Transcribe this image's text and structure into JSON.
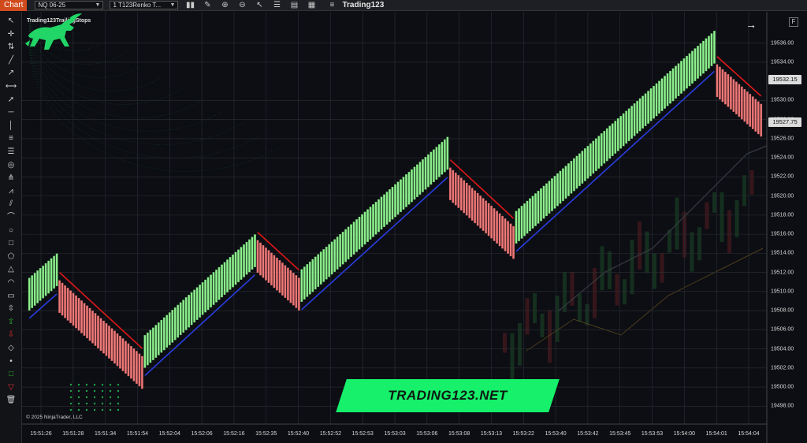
{
  "toolbar": {
    "chart_tab": "Chart",
    "instrument": "NQ 06-25",
    "bar_type": "1 T123Renko T...",
    "title": "Trading123",
    "icons": [
      "bar-chart-icon",
      "pencil-icon",
      "zoom-in-icon",
      "zoom-out-icon",
      "cursor-icon",
      "list-icon",
      "template-icon",
      "properties-icon",
      "menu-icon"
    ]
  },
  "left_tools": [
    "cursor-icon",
    "crosshair-icon",
    "stay-in-drawtool-icon",
    "line-icon",
    "ray-icon",
    "extended-line-icon",
    "arrow-line-icon",
    "horizontal-line-icon",
    "vertical-line-icon",
    "fib-retracement-icon",
    "fib-extension-icon",
    "fib-circle-icon",
    "andrews-pitchfork-icon",
    "gann-fan-icon",
    "regression-channel-icon",
    "time-cycles-icon",
    "ellipse-icon",
    "rectangle-icon",
    "polygon-icon",
    "triangle-icon",
    "arc-icon",
    "ruler-icon",
    "risk-reward-icon",
    "arrow-up-icon",
    "arrow-down-icon",
    "diamond-icon",
    "dot-icon",
    "square-icon",
    "triangle-down-icon",
    "trash-icon"
  ],
  "chart": {
    "indicator_label": "Trading123TrailingStops",
    "copyright": "© 2025 NinjaTrader, LLC",
    "panel_button": "F",
    "y_ticks": [
      "19536.00",
      "19534.00",
      "19530.00",
      "19528.00",
      "19526.00",
      "19524.00",
      "19522.00",
      "19520.00",
      "19518.00",
      "19516.00",
      "19514.00",
      "19512.00",
      "19510.00",
      "19508.00",
      "19506.00",
      "19504.00",
      "19502.00",
      "19500.00",
      "19498.00"
    ],
    "price_tags": [
      "19532.15",
      "19527.75"
    ],
    "x_ticks": [
      "15:51:26",
      "15:51:28",
      "15:51:34",
      "15:51:54",
      "15:52:04",
      "15:52:06",
      "15:52:16",
      "15:52:35",
      "15:52:40",
      "15:52:52",
      "15:52:53",
      "15:53:03",
      "15:53:06",
      "15:53:08",
      "15:53:13",
      "15:53:22",
      "15:53:40",
      "15:53:42",
      "15:53:45",
      "15:53:53",
      "15:54:00",
      "15:54:01",
      "15:54:04"
    ],
    "colors": {
      "up": "#8ef08e",
      "down": "#ee7a7a",
      "stop_long": "#2a3de0",
      "stop_short": "#e01818",
      "grid": "#2c2f36"
    },
    "chart_data": {
      "type": "candlestick",
      "legs": [
        {
          "dir": "up",
          "from": 19509.6,
          "to": 19512.4
        },
        {
          "dir": "down",
          "from": 19509.6,
          "to": 19501.4
        },
        {
          "dir": "up",
          "from": 19503.6,
          "to": 19514.4
        },
        {
          "dir": "down",
          "from": 19513.8,
          "to": 19509.6
        },
        {
          "dir": "up",
          "from": 19510.5,
          "to": 19524.6
        },
        {
          "dir": "down",
          "from": 19521.4,
          "to": 19515.0
        },
        {
          "dir": "up",
          "from": 19516.6,
          "to": 19535.7
        },
        {
          "dir": "down",
          "from": 19532.2,
          "to": 19527.8
        }
      ]
    }
  },
  "brand": {
    "text": "TRADING123.NET",
    "logo": "bull-logo-icon"
  }
}
